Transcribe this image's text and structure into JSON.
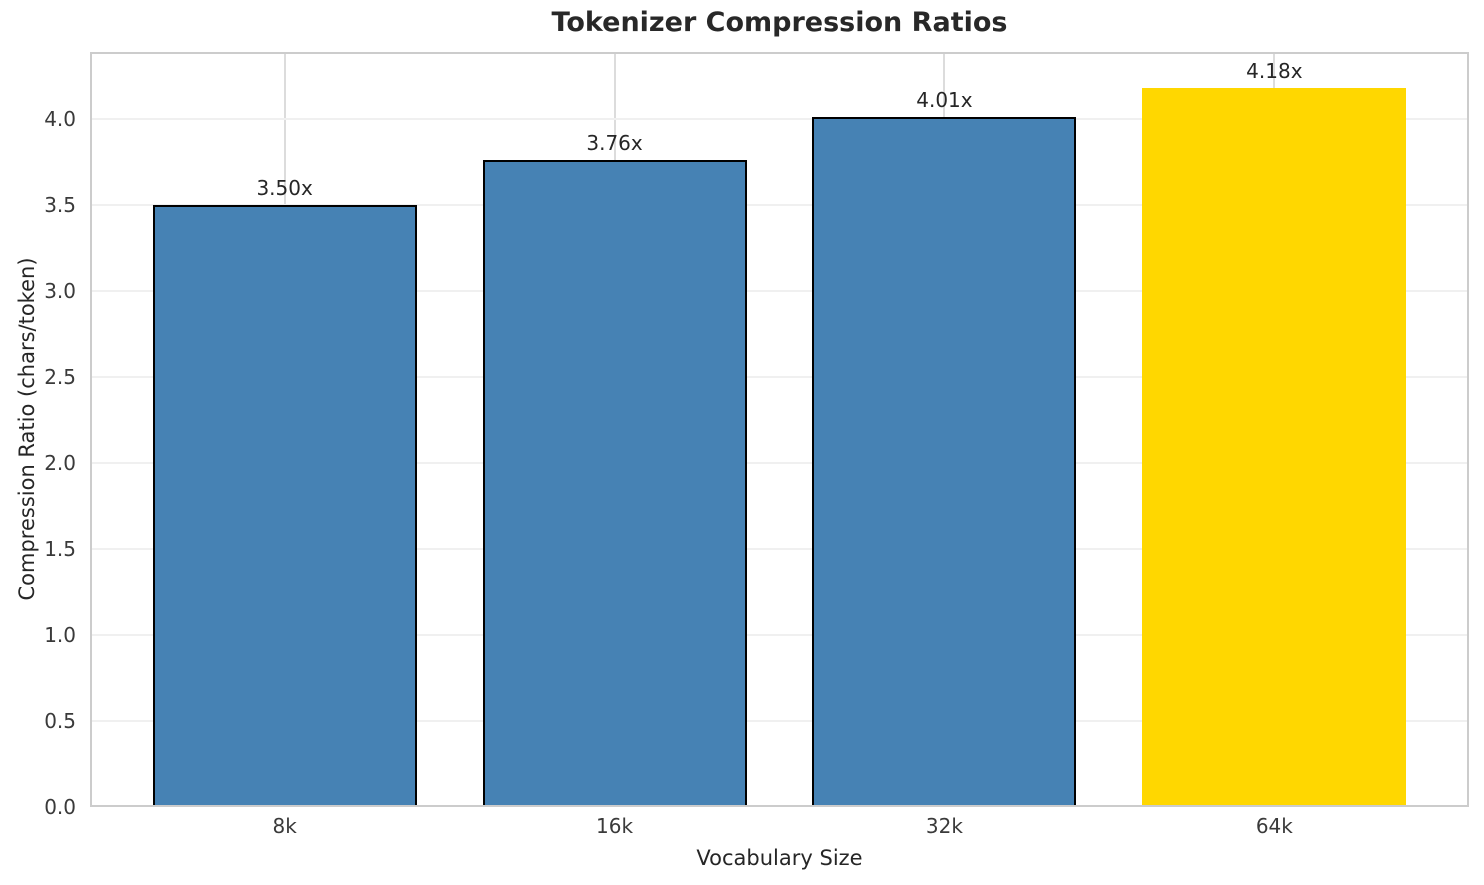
{
  "chart_data": {
    "type": "bar",
    "title": "Tokenizer Compression Ratios",
    "xlabel": "Vocabulary Size",
    "ylabel": "Compression Ratio (chars/token)",
    "categories": [
      "8k",
      "16k",
      "32k",
      "64k"
    ],
    "values": [
      3.5,
      3.76,
      4.01,
      4.18
    ],
    "bar_labels": [
      "3.50x",
      "3.76x",
      "4.01x",
      "4.18x"
    ],
    "bar_colors": [
      "#4682B4",
      "#4682B4",
      "#4682B4",
      "#FFD700"
    ],
    "bar_edge_colors": [
      "#000000",
      "#000000",
      "#000000",
      "none"
    ],
    "highlight_category": "64k",
    "ylim": [
      0,
      4.39
    ],
    "yticks": [
      0.0,
      0.5,
      1.0,
      1.5,
      2.0,
      2.5,
      3.0,
      3.5,
      4.0
    ],
    "ytick_labels": [
      "0.0",
      "0.5",
      "1.0",
      "1.5",
      "2.0",
      "2.5",
      "3.0",
      "3.5",
      "4.0"
    ],
    "grid": true,
    "grid_color_horizontal": "#f0f0f0",
    "grid_color_vertical": "#dcdcdc",
    "spine_color": "#cccccc",
    "legend": null
  }
}
